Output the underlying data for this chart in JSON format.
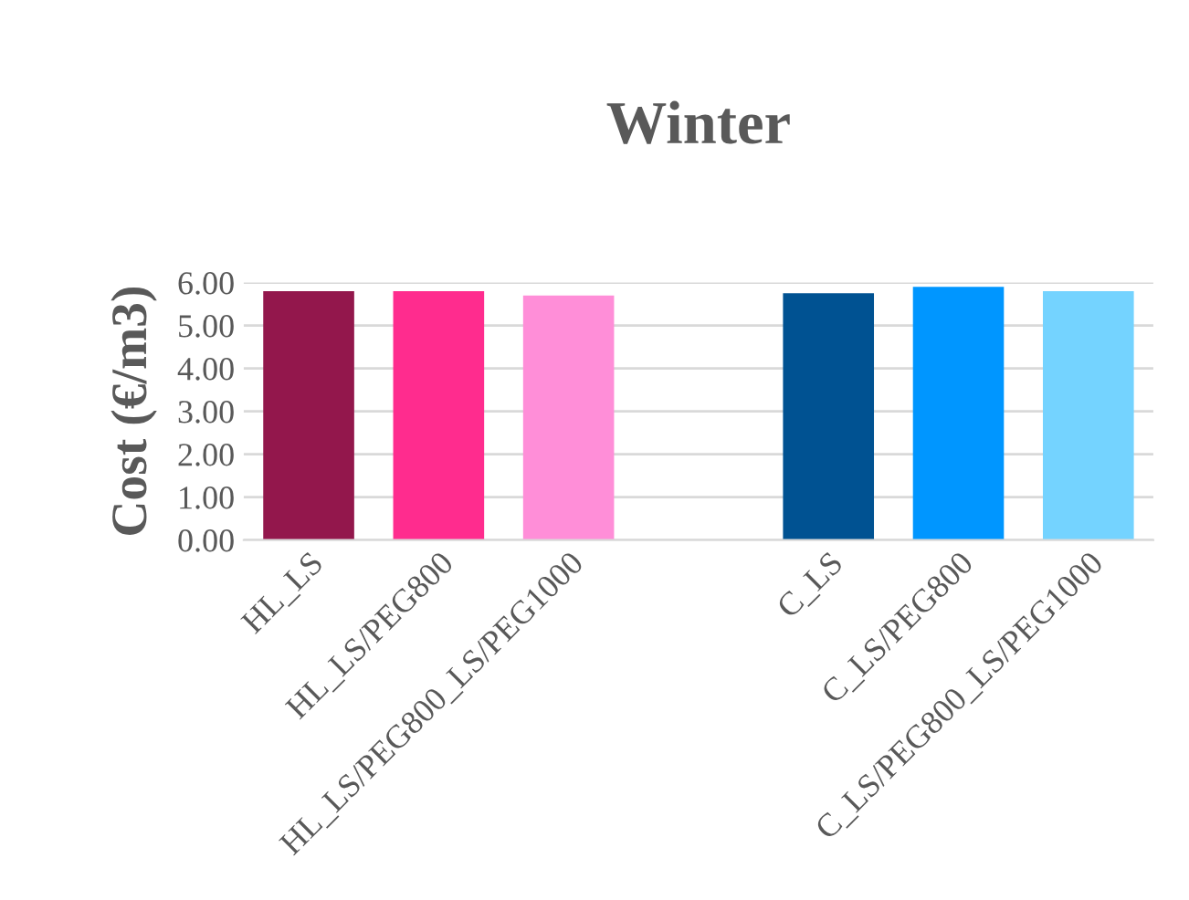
{
  "chart_data": {
    "type": "bar",
    "title": "Winter",
    "ylabel": "Cost (€/m3)",
    "categories": [
      "HL_LS",
      "HL_LS/PEG800",
      "HL_LS/PEG800_LS/PEG1000",
      null,
      "C_LS",
      "C_LS/PEG800",
      "C_LS/PEG800_LS/PEG1000"
    ],
    "values": [
      5.8,
      5.8,
      5.7,
      null,
      5.75,
      5.9,
      5.8
    ],
    "colors": [
      "#93174c",
      "#ff2c8e",
      "#ff8ed8",
      null,
      "#005292",
      "#0096ff",
      "#74d3ff"
    ],
    "ylim": [
      0,
      6
    ],
    "yticks": [
      {
        "value": 0,
        "label": "0.00"
      },
      {
        "value": 1,
        "label": "1.00"
      },
      {
        "value": 2,
        "label": "2.00"
      },
      {
        "value": 3,
        "label": "3.00"
      },
      {
        "value": 4,
        "label": "4.00"
      },
      {
        "value": 5,
        "label": "5.00"
      },
      {
        "value": 6,
        "label": "6.00"
      }
    ],
    "grid": "y"
  }
}
